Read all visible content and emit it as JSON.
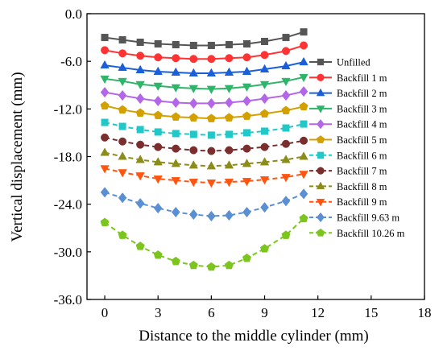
{
  "chart_data": {
    "type": "line",
    "xlabel": "Distance to the middle cylinder (mm)",
    "ylabel": "Vertical displacement (mm)",
    "xlim": [
      -1,
      18
    ],
    "ylim": [
      -36,
      0
    ],
    "xticks": [
      0,
      3,
      6,
      9,
      12,
      15,
      18
    ],
    "yticks": [
      0.0,
      -6.0,
      -12.0,
      -18.0,
      -24.0,
      -30.0,
      -36.0
    ],
    "xtick_labels": [
      "0",
      "3",
      "6",
      "9",
      "12",
      "15",
      "18"
    ],
    "ytick_labels": [
      "0.0",
      "-6.0",
      "-12.0",
      "-18.0",
      "-24.0",
      "-30.0",
      "-36.0"
    ],
    "grid": false,
    "legend_position": "right",
    "x": [
      0,
      1,
      2,
      3,
      4,
      5,
      6,
      7,
      8,
      9,
      10.2,
      11.2
    ],
    "series": [
      {
        "name": "Unfilled",
        "color": "#555555",
        "marker": "square",
        "dashed": false,
        "values": [
          -3.0,
          -3.3,
          -3.6,
          -3.8,
          -3.9,
          -4.0,
          -4.0,
          -3.9,
          -3.8,
          -3.5,
          -3.0,
          -2.3
        ]
      },
      {
        "name": "Backfill 1 m",
        "color": "#ff3333",
        "marker": "circle",
        "dashed": false,
        "values": [
          -4.6,
          -5.0,
          -5.3,
          -5.5,
          -5.6,
          -5.7,
          -5.7,
          -5.6,
          -5.5,
          -5.2,
          -4.7,
          -4.0
        ]
      },
      {
        "name": "Backfill 2 m",
        "color": "#1a5fd8",
        "marker": "triangle-up",
        "dashed": false,
        "values": [
          -6.5,
          -6.8,
          -7.1,
          -7.3,
          -7.4,
          -7.5,
          -7.5,
          -7.4,
          -7.3,
          -7.0,
          -6.6,
          -6.1
        ]
      },
      {
        "name": "Backfill 3 m",
        "color": "#2fb56a",
        "marker": "triangle-down",
        "dashed": false,
        "values": [
          -8.2,
          -8.5,
          -8.9,
          -9.1,
          -9.3,
          -9.4,
          -9.5,
          -9.4,
          -9.2,
          -8.9,
          -8.5,
          -8.0
        ]
      },
      {
        "name": "Backfill 4 m",
        "color": "#b366e8",
        "marker": "diamond",
        "dashed": false,
        "values": [
          -9.9,
          -10.3,
          -10.7,
          -11.0,
          -11.2,
          -11.3,
          -11.3,
          -11.2,
          -11.0,
          -10.7,
          -10.3,
          -9.8
        ]
      },
      {
        "name": "Backfill 5 m",
        "color": "#d4a000",
        "marker": "pentagon",
        "dashed": false,
        "values": [
          -11.6,
          -12.1,
          -12.5,
          -12.8,
          -13.0,
          -13.1,
          -13.2,
          -13.1,
          -12.9,
          -12.6,
          -12.2,
          -11.7
        ]
      },
      {
        "name": "Backfill 6 m",
        "color": "#22c7c7",
        "marker": "square",
        "dashed": true,
        "values": [
          -13.7,
          -14.2,
          -14.6,
          -14.9,
          -15.1,
          -15.2,
          -15.3,
          -15.2,
          -15.0,
          -14.8,
          -14.4,
          -13.9
        ]
      },
      {
        "name": "Backfill 7 m",
        "color": "#7a2e2e",
        "marker": "circle",
        "dashed": true,
        "values": [
          -15.6,
          -16.1,
          -16.5,
          -16.8,
          -17.0,
          -17.2,
          -17.3,
          -17.2,
          -17.0,
          -16.8,
          -16.4,
          -16.0
        ]
      },
      {
        "name": "Backfill 8 m",
        "color": "#8c8c1a",
        "marker": "triangle-up",
        "dashed": true,
        "values": [
          -17.5,
          -18.0,
          -18.4,
          -18.7,
          -18.9,
          -19.1,
          -19.2,
          -19.1,
          -18.9,
          -18.7,
          -18.4,
          -18.0
        ]
      },
      {
        "name": "Backfill 9 m",
        "color": "#ff5511",
        "marker": "triangle-down",
        "dashed": true,
        "values": [
          -19.5,
          -20.0,
          -20.4,
          -20.8,
          -21.0,
          -21.2,
          -21.3,
          -21.2,
          -21.1,
          -20.9,
          -20.6,
          -20.2
        ]
      },
      {
        "name": "Backfill 9.63 m",
        "color": "#5b8fd4",
        "marker": "diamond",
        "dashed": true,
        "values": [
          -22.5,
          -23.2,
          -23.9,
          -24.5,
          -25.0,
          -25.3,
          -25.5,
          -25.4,
          -25.0,
          -24.4,
          -23.6,
          -22.7
        ]
      },
      {
        "name": "Backfill 10.26 m",
        "color": "#7cc41e",
        "marker": "pentagon",
        "dashed": true,
        "values": [
          -26.3,
          -27.9,
          -29.3,
          -30.4,
          -31.2,
          -31.7,
          -31.9,
          -31.7,
          -30.8,
          -29.6,
          -27.9,
          -25.8
        ]
      }
    ]
  }
}
